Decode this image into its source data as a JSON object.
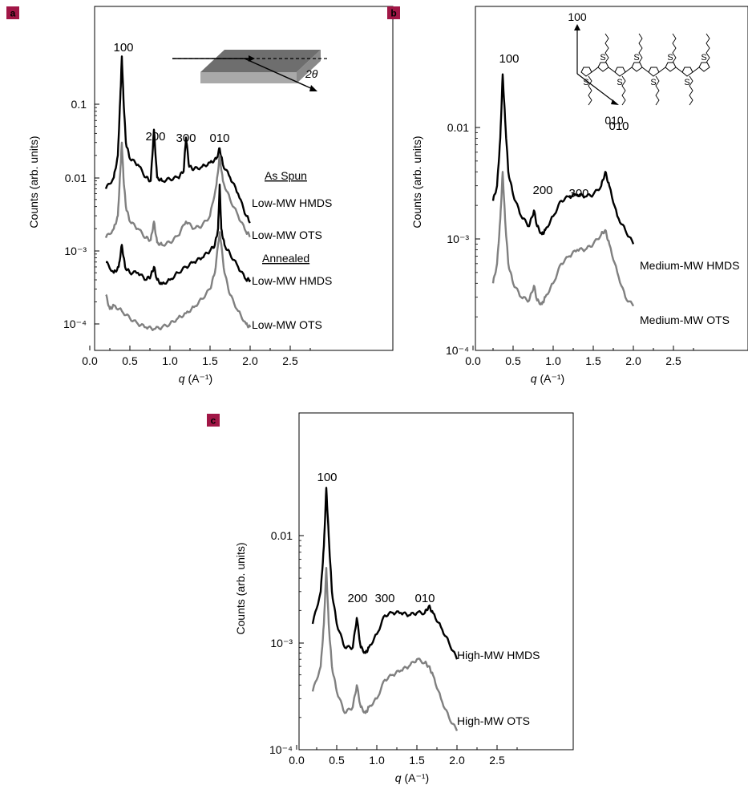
{
  "colors": {
    "dark": "#000000",
    "gray": "#808080",
    "badge": "#a11646",
    "badge_text": "#ffffff"
  },
  "chart_data": [
    {
      "panel": "a",
      "type": "line",
      "xlabel": "q (A⁻¹)",
      "ylabel": "Counts (arb. units)",
      "xticks": [
        "0.0",
        "0.5",
        "1.0",
        "1.5",
        "2.0",
        "2.5"
      ],
      "yticks": [
        "0.1",
        "0.01",
        "10⁻³",
        "10⁻⁴"
      ],
      "xlim": [
        0,
        3.0
      ],
      "ylim": [
        6e-05,
        0.6
      ],
      "log_y": true,
      "peaks": [
        "100",
        "200",
        "300",
        "010"
      ],
      "section_labels": [
        "As Spun",
        "Annealed"
      ],
      "inset": {
        "angle_label": "2θ"
      },
      "series": [
        {
          "name": "Low-MW HMDS",
          "group": "As Spun",
          "color": "dark",
          "x": [
            0.2,
            0.3,
            0.35,
            0.38,
            0.4,
            0.42,
            0.45,
            0.5,
            0.6,
            0.7,
            0.76,
            0.8,
            0.84,
            0.9,
            1.0,
            1.1,
            1.17,
            1.2,
            1.24,
            1.3,
            1.4,
            1.5,
            1.58,
            1.62,
            1.66,
            1.75,
            1.85,
            1.95,
            2.0
          ],
          "y": [
            0.007,
            0.01,
            0.02,
            0.12,
            0.45,
            0.12,
            0.03,
            0.018,
            0.015,
            0.01,
            0.009,
            0.045,
            0.01,
            0.009,
            0.0095,
            0.01,
            0.012,
            0.035,
            0.014,
            0.013,
            0.014,
            0.016,
            0.018,
            0.025,
            0.015,
            0.01,
            0.006,
            0.003,
            0.0025
          ]
        },
        {
          "name": "Low-MW OTS",
          "group": "As Spun",
          "color": "gray",
          "x": [
            0.2,
            0.3,
            0.35,
            0.38,
            0.4,
            0.42,
            0.45,
            0.5,
            0.6,
            0.7,
            0.76,
            0.8,
            0.84,
            0.9,
            1.0,
            1.1,
            1.2,
            1.3,
            1.4,
            1.5,
            1.58,
            1.62,
            1.66,
            1.75,
            1.85,
            1.95,
            2.0
          ],
          "y": [
            0.0015,
            0.002,
            0.003,
            0.012,
            0.03,
            0.01,
            0.004,
            0.0025,
            0.002,
            0.0015,
            0.0014,
            0.0025,
            0.0013,
            0.0012,
            0.0013,
            0.0016,
            0.0025,
            0.002,
            0.0022,
            0.003,
            0.008,
            0.02,
            0.009,
            0.005,
            0.003,
            0.0018,
            0.0016
          ]
        },
        {
          "name": "Low-MW HMDS",
          "group": "Annealed",
          "color": "dark",
          "x": [
            0.2,
            0.3,
            0.36,
            0.4,
            0.44,
            0.5,
            0.6,
            0.7,
            0.76,
            0.8,
            0.84,
            0.9,
            1.0,
            1.1,
            1.2,
            1.3,
            1.4,
            1.5,
            1.56,
            1.6,
            1.62,
            1.64,
            1.68,
            1.75,
            1.85,
            1.95,
            2.0
          ],
          "y": [
            0.0007,
            0.0005,
            0.0006,
            0.0012,
            0.0006,
            0.0005,
            0.0005,
            0.0004,
            0.00045,
            0.0006,
            0.0004,
            0.00035,
            0.0004,
            0.0005,
            0.0006,
            0.0007,
            0.0008,
            0.001,
            0.0012,
            0.002,
            0.008,
            0.002,
            0.0012,
            0.0009,
            0.0006,
            0.0004,
            0.0004
          ]
        },
        {
          "name": "Low-MW OTS",
          "group": "Annealed",
          "color": "gray",
          "x": [
            0.2,
            0.25,
            0.3,
            0.4,
            0.5,
            0.6,
            0.7,
            0.8,
            0.9,
            1.0,
            1.1,
            1.2,
            1.3,
            1.4,
            1.5,
            1.56,
            1.62,
            1.68,
            1.75,
            1.85,
            1.95,
            2.0
          ],
          "y": [
            0.00025,
            0.00016,
            0.00018,
            0.00015,
            0.00012,
            0.0001,
            9e-05,
            8.5e-05,
            9e-05,
            0.0001,
            0.00012,
            0.00014,
            0.00017,
            0.00022,
            0.0003,
            0.0005,
            0.0018,
            0.0005,
            0.00025,
            0.00015,
            0.0001,
            9e-05
          ]
        }
      ]
    },
    {
      "panel": "b",
      "type": "line",
      "xlabel": "q (A⁻¹)",
      "ylabel": "Counts (arb. units)",
      "xticks": [
        "0.0",
        "0.5",
        "1.0",
        "1.5",
        "2.0",
        "2.5"
      ],
      "yticks": [
        "0.01",
        "10⁻³",
        "10⁻⁴"
      ],
      "xlim": [
        0,
        3.0
      ],
      "ylim": [
        0.0001,
        0.1
      ],
      "log_y": true,
      "peaks": [
        "100",
        "200",
        "300",
        "010"
      ],
      "inset": {
        "axis_labels": [
          "100",
          "010"
        ],
        "ring_label": "S"
      },
      "series": [
        {
          "name": "Medium-MW HMDS",
          "color": "dark",
          "x": [
            0.25,
            0.3,
            0.34,
            0.37,
            0.4,
            0.44,
            0.5,
            0.6,
            0.7,
            0.76,
            0.8,
            0.86,
            0.9,
            1.0,
            1.1,
            1.2,
            1.3,
            1.4,
            1.5,
            1.6,
            1.65,
            1.7,
            1.8,
            1.9,
            2.0
          ],
          "y": [
            0.0022,
            0.003,
            0.008,
            0.03,
            0.012,
            0.004,
            0.0025,
            0.0016,
            0.0013,
            0.0018,
            0.0013,
            0.0011,
            0.0012,
            0.0016,
            0.0022,
            0.0024,
            0.0025,
            0.0024,
            0.0025,
            0.003,
            0.004,
            0.003,
            0.0016,
            0.0012,
            0.0009
          ]
        },
        {
          "name": "Medium-MW OTS",
          "color": "gray",
          "x": [
            0.25,
            0.3,
            0.34,
            0.37,
            0.4,
            0.44,
            0.5,
            0.6,
            0.7,
            0.76,
            0.8,
            0.86,
            0.9,
            1.0,
            1.1,
            1.2,
            1.3,
            1.4,
            1.5,
            1.6,
            1.65,
            1.7,
            1.8,
            1.9,
            2.0
          ],
          "y": [
            0.0004,
            0.0006,
            0.0015,
            0.004,
            0.0015,
            0.0006,
            0.0004,
            0.0003,
            0.00028,
            0.00038,
            0.00028,
            0.00026,
            0.0003,
            0.0004,
            0.0006,
            0.0007,
            0.0008,
            0.0008,
            0.0009,
            0.0011,
            0.0012,
            0.0009,
            0.0005,
            0.0003,
            0.00025
          ]
        }
      ]
    },
    {
      "panel": "c",
      "type": "line",
      "xlabel": "q (A⁻¹)",
      "ylabel": "Counts (arb. units)",
      "xticks": [
        "0.0",
        "0.5",
        "1.0",
        "1.5",
        "2.0",
        "2.5"
      ],
      "yticks": [
        "0.01",
        "10⁻³",
        "10⁻⁴"
      ],
      "xlim": [
        0,
        3.0
      ],
      "ylim": [
        0.0001,
        0.1
      ],
      "log_y": true,
      "peaks": [
        "100",
        "200",
        "300",
        "010"
      ],
      "series": [
        {
          "name": "High-MW HMDS",
          "color": "dark",
          "x": [
            0.2,
            0.3,
            0.34,
            0.37,
            0.4,
            0.44,
            0.5,
            0.6,
            0.7,
            0.75,
            0.8,
            0.86,
            0.9,
            1.0,
            1.1,
            1.2,
            1.3,
            1.4,
            1.5,
            1.6,
            1.65,
            1.7,
            1.8,
            1.9,
            2.0
          ],
          "y": [
            0.0015,
            0.003,
            0.008,
            0.028,
            0.01,
            0.003,
            0.0015,
            0.0009,
            0.0009,
            0.0017,
            0.0009,
            0.0008,
            0.0009,
            0.0012,
            0.0018,
            0.0019,
            0.0019,
            0.0018,
            0.0019,
            0.0019,
            0.0022,
            0.0019,
            0.0014,
            0.001,
            0.0007
          ]
        },
        {
          "name": "High-MW OTS",
          "color": "gray",
          "x": [
            0.2,
            0.3,
            0.34,
            0.37,
            0.4,
            0.44,
            0.5,
            0.6,
            0.7,
            0.75,
            0.8,
            0.86,
            0.9,
            1.0,
            1.1,
            1.2,
            1.3,
            1.4,
            1.5,
            1.6,
            1.65,
            1.7,
            1.8,
            1.9,
            2.0
          ],
          "y": [
            0.00035,
            0.0006,
            0.0015,
            0.005,
            0.0015,
            0.0006,
            0.00035,
            0.00022,
            0.00025,
            0.0004,
            0.00025,
            0.00022,
            0.00025,
            0.0003,
            0.00045,
            0.0005,
            0.00055,
            0.0006,
            0.0007,
            0.00065,
            0.0006,
            0.0005,
            0.0003,
            0.0002,
            0.00015
          ]
        }
      ]
    }
  ]
}
